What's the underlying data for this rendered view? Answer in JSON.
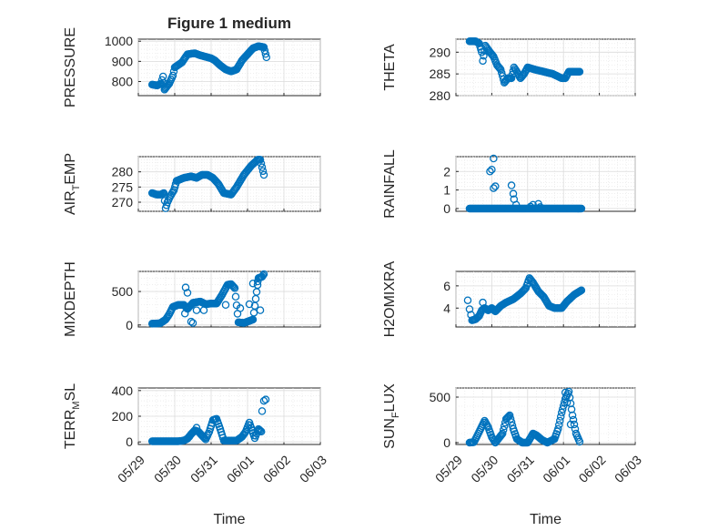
{
  "title": "Figure 1 medium",
  "chart_data": [
    {
      "type": "scatter",
      "id": "pressure",
      "ylabel": "PRESSURE",
      "ylabel_sub": "",
      "ylim": [
        730,
        1010
      ],
      "yticks": [
        800,
        900,
        1000
      ],
      "yticklabels": [
        "800",
        "900",
        "1000"
      ],
      "xlim": [
        0,
        5
      ],
      "xticks": [
        0,
        1,
        2,
        3,
        4,
        5
      ],
      "xticklabels": [],
      "xlabel": "",
      "color": "#0072bd",
      "grid": true,
      "curve": [
        [
          0.38,
          785
        ],
        [
          0.52,
          780
        ],
        [
          0.62,
          790
        ],
        [
          0.68,
          825
        ],
        [
          0.72,
          760
        ],
        [
          0.76,
          770
        ],
        [
          0.85,
          790
        ],
        [
          0.95,
          830
        ],
        [
          1.0,
          870
        ],
        [
          1.2,
          895
        ],
        [
          1.35,
          935
        ],
        [
          1.55,
          940
        ],
        [
          1.7,
          930
        ],
        [
          1.8,
          925
        ],
        [
          2.0,
          915
        ],
        [
          2.1,
          905
        ],
        [
          2.25,
          880
        ],
        [
          2.4,
          860
        ],
        [
          2.55,
          850
        ],
        [
          2.7,
          860
        ],
        [
          2.85,
          905
        ],
        [
          3.0,
          935
        ],
        [
          3.15,
          965
        ],
        [
          3.3,
          975
        ],
        [
          3.45,
          970
        ],
        [
          3.52,
          920
        ]
      ]
    },
    {
      "type": "scatter",
      "id": "theta",
      "ylabel": "THETA",
      "ylabel_sub": "",
      "ylim": [
        280,
        293
      ],
      "yticks": [
        280,
        285,
        290
      ],
      "yticklabels": [
        "280",
        "285",
        "290"
      ],
      "xlim": [
        0,
        5
      ],
      "xticks": [
        0,
        1,
        2,
        3,
        4,
        5
      ],
      "xticklabels": [],
      "xlabel": "",
      "color": "#0072bd",
      "grid": true,
      "curve": [
        [
          0.38,
          292.5
        ],
        [
          0.55,
          292.5
        ],
        [
          0.65,
          292
        ],
        [
          0.72,
          290
        ],
        [
          0.75,
          288
        ],
        [
          0.82,
          291.5
        ],
        [
          0.95,
          290
        ],
        [
          1.05,
          289
        ],
        [
          1.15,
          287
        ],
        [
          1.25,
          286
        ],
        [
          1.35,
          283
        ],
        [
          1.45,
          284
        ],
        [
          1.55,
          284
        ],
        [
          1.62,
          286.5
        ],
        [
          1.7,
          285.5
        ],
        [
          1.8,
          284
        ],
        [
          1.9,
          285
        ],
        [
          2.0,
          286.5
        ],
        [
          2.2,
          286
        ],
        [
          2.45,
          285.5
        ],
        [
          2.7,
          285
        ],
        [
          2.95,
          284
        ],
        [
          3.05,
          284
        ],
        [
          3.15,
          285.5
        ],
        [
          3.3,
          285.5
        ],
        [
          3.45,
          285.5
        ]
      ]
    },
    {
      "type": "scatter",
      "id": "air-temp",
      "ylabel": "AIR",
      "ylabel_sub": "T",
      "ylabel_after": "EMP",
      "ylim": [
        267,
        285
      ],
      "yticks": [
        270,
        275,
        280
      ],
      "yticklabels": [
        "270",
        "275",
        "280"
      ],
      "xlim": [
        0,
        5
      ],
      "xticks": [
        0,
        1,
        2,
        3,
        4,
        5
      ],
      "xticklabels": [],
      "xlabel": "",
      "color": "#0072bd",
      "grid": true,
      "curve": [
        [
          0.38,
          273
        ],
        [
          0.5,
          272.5
        ],
        [
          0.62,
          272.5
        ],
        [
          0.7,
          273
        ],
        [
          0.75,
          268
        ],
        [
          0.8,
          270
        ],
        [
          0.88,
          272
        ],
        [
          0.98,
          274
        ],
        [
          1.05,
          277
        ],
        [
          1.25,
          278
        ],
        [
          1.45,
          278.5
        ],
        [
          1.6,
          278
        ],
        [
          1.75,
          279
        ],
        [
          1.9,
          279
        ],
        [
          2.05,
          278
        ],
        [
          2.2,
          276
        ],
        [
          2.35,
          273
        ],
        [
          2.55,
          272.5
        ],
        [
          2.7,
          275
        ],
        [
          2.9,
          279
        ],
        [
          3.1,
          282
        ],
        [
          3.28,
          284
        ],
        [
          3.35,
          284
        ],
        [
          3.45,
          279
        ]
      ]
    },
    {
      "type": "scatter",
      "id": "rainfall",
      "ylabel": "RAINFALL",
      "ylabel_sub": "",
      "ylim": [
        -0.15,
        2.8
      ],
      "yticks": [
        0,
        1,
        2
      ],
      "yticklabels": [
        "0",
        "1",
        "2"
      ],
      "xlim": [
        0,
        5
      ],
      "xticks": [
        0,
        1,
        2,
        3,
        4,
        5
      ],
      "xticklabels": [],
      "xlabel": "",
      "color": "#0072bd",
      "grid": true,
      "curve": [
        [
          0.38,
          0
        ],
        [
          3.5,
          0
        ]
      ],
      "extra": [
        [
          0.95,
          2
        ],
        [
          1.0,
          2.1
        ],
        [
          1.05,
          2.7
        ],
        [
          1.05,
          1.1
        ],
        [
          1.1,
          1.2
        ],
        [
          1.55,
          1.25
        ],
        [
          1.6,
          0.8
        ],
        [
          1.62,
          0.5
        ],
        [
          1.68,
          0.2
        ],
        [
          2.08,
          0.1
        ],
        [
          2.15,
          0.2
        ],
        [
          2.3,
          0.25
        ],
        [
          2.35,
          0.08
        ]
      ]
    },
    {
      "type": "scatter",
      "id": "mixdepth",
      "ylabel": "MIXDEPTH",
      "ylabel_sub": "",
      "ylim": [
        -30,
        800
      ],
      "yticks": [
        0,
        500
      ],
      "yticklabels": [
        "0",
        "500"
      ],
      "xlim": [
        0,
        5
      ],
      "xticks": [
        0,
        1,
        2,
        3,
        4,
        5
      ],
      "xticklabels": [],
      "xlabel": "",
      "color": "#0072bd",
      "grid": true,
      "curve": [
        [
          0.38,
          20
        ],
        [
          0.6,
          25
        ],
        [
          0.75,
          80
        ],
        [
          0.85,
          160
        ],
        [
          0.95,
          270
        ],
        [
          1.1,
          300
        ],
        [
          1.25,
          300
        ],
        [
          1.35,
          240
        ],
        [
          1.5,
          330
        ],
        [
          1.7,
          350
        ],
        [
          1.85,
          310
        ],
        [
          2.0,
          320
        ],
        [
          2.15,
          320
        ],
        [
          2.3,
          450
        ],
        [
          2.45,
          600
        ],
        [
          2.55,
          610
        ],
        [
          2.65,
          550
        ],
        [
          2.75,
          40
        ],
        [
          2.9,
          30
        ],
        [
          3.0,
          50
        ],
        [
          3.15,
          80
        ],
        [
          3.3,
          700
        ],
        [
          3.4,
          720
        ],
        [
          3.45,
          760
        ]
      ],
      "extra": [
        [
          1.3,
          560
        ],
        [
          1.35,
          480
        ],
        [
          1.28,
          170
        ],
        [
          1.45,
          50
        ],
        [
          1.5,
          30
        ],
        [
          1.6,
          220
        ],
        [
          1.8,
          220
        ],
        [
          2.4,
          300
        ],
        [
          2.8,
          250
        ],
        [
          3.05,
          310
        ],
        [
          3.15,
          620
        ],
        [
          3.28,
          650
        ],
        [
          3.35,
          220
        ]
      ]
    },
    {
      "type": "scatter",
      "id": "h2omixra",
      "ylabel": "H2OMIXRA",
      "ylabel_sub": "",
      "ylim": [
        2.3,
        7.3
      ],
      "yticks": [
        4,
        6
      ],
      "yticklabels": [
        "4",
        "6"
      ],
      "xlim": [
        0,
        5
      ],
      "xticks": [
        0,
        1,
        2,
        3,
        4,
        5
      ],
      "xticklabels": [],
      "xlabel": "",
      "color": "#0072bd",
      "grid": true,
      "curve": [
        [
          0.45,
          2.9
        ],
        [
          0.55,
          3.0
        ],
        [
          0.65,
          3.3
        ],
        [
          0.72,
          3.8
        ],
        [
          0.8,
          4.0
        ],
        [
          0.9,
          3.8
        ],
        [
          1.0,
          4.0
        ],
        [
          1.1,
          3.7
        ],
        [
          1.25,
          4.2
        ],
        [
          1.4,
          4.5
        ],
        [
          1.6,
          4.8
        ],
        [
          1.8,
          5.3
        ],
        [
          1.95,
          5.8
        ],
        [
          2.05,
          6.7
        ],
        [
          2.15,
          6.3
        ],
        [
          2.3,
          5.5
        ],
        [
          2.45,
          5.0
        ],
        [
          2.6,
          4.2
        ],
        [
          2.75,
          4.0
        ],
        [
          2.95,
          4.0
        ],
        [
          3.1,
          4.6
        ],
        [
          3.3,
          5.2
        ],
        [
          3.5,
          5.6
        ]
      ],
      "extra": [
        [
          0.33,
          4.7
        ],
        [
          0.38,
          3.9
        ],
        [
          0.42,
          3.4
        ],
        [
          0.75,
          4.5
        ]
      ]
    },
    {
      "type": "scatter",
      "id": "terr-msl",
      "ylabel": "TERR",
      "ylabel_sub": "M",
      "ylabel_after": "SL",
      "ylim": [
        -20,
        420
      ],
      "yticks": [
        0,
        200,
        400
      ],
      "yticklabels": [
        "0",
        "200",
        "400"
      ],
      "xlim": [
        0,
        5
      ],
      "xticks": [
        0,
        1,
        2,
        3,
        4,
        5
      ],
      "xticklabels": [
        "05/29",
        "05/30",
        "05/31",
        "06/01",
        "06/02",
        "06/03"
      ],
      "xlabel": "Time",
      "color": "#0072bd",
      "grid": true,
      "curve": [
        [
          0.38,
          5
        ],
        [
          1.1,
          5
        ],
        [
          1.25,
          10
        ],
        [
          1.35,
          25
        ],
        [
          1.45,
          60
        ],
        [
          1.55,
          90
        ],
        [
          1.65,
          80
        ],
        [
          1.75,
          50
        ],
        [
          1.85,
          20
        ],
        [
          1.95,
          80
        ],
        [
          2.05,
          170
        ],
        [
          2.15,
          180
        ],
        [
          2.25,
          100
        ],
        [
          2.35,
          10
        ],
        [
          2.7,
          10
        ],
        [
          2.85,
          40
        ],
        [
          2.95,
          80
        ],
        [
          3.05,
          150
        ],
        [
          3.2,
          30
        ],
        [
          3.3,
          100
        ],
        [
          3.38,
          80
        ]
      ],
      "extra": [
        [
          3.4,
          240
        ],
        [
          3.45,
          320
        ],
        [
          3.5,
          330
        ],
        [
          1.4,
          40
        ],
        [
          1.6,
          110
        ]
      ]
    },
    {
      "type": "scatter",
      "id": "sun-flux",
      "ylabel": "SUN",
      "ylabel_sub": "F",
      "ylabel_after": "LUX",
      "ylim": [
        -20,
        600
      ],
      "yticks": [
        0,
        500
      ],
      "yticklabels": [
        "0",
        "500"
      ],
      "xlim": [
        0,
        5
      ],
      "xticks": [
        0,
        1,
        2,
        3,
        4,
        5
      ],
      "xticklabels": [
        "05/29",
        "05/30",
        "05/31",
        "06/01",
        "06/02",
        "06/03"
      ],
      "xlabel": "Time",
      "color": "#0072bd",
      "grid": true,
      "curve": [
        [
          0.38,
          0
        ],
        [
          0.5,
          5
        ],
        [
          0.6,
          80
        ],
        [
          0.7,
          160
        ],
        [
          0.8,
          240
        ],
        [
          0.9,
          170
        ],
        [
          1.0,
          60
        ],
        [
          1.1,
          0
        ],
        [
          1.3,
          100
        ],
        [
          1.4,
          260
        ],
        [
          1.5,
          300
        ],
        [
          1.6,
          150
        ],
        [
          1.7,
          40
        ],
        [
          1.85,
          0
        ],
        [
          2.0,
          0
        ],
        [
          2.15,
          100
        ],
        [
          2.25,
          80
        ],
        [
          2.4,
          30
        ],
        [
          2.55,
          0
        ],
        [
          2.75,
          40
        ],
        [
          2.85,
          150
        ],
        [
          2.95,
          330
        ],
        [
          3.05,
          480
        ],
        [
          3.15,
          560
        ],
        [
          3.25,
          300
        ],
        [
          3.35,
          100
        ],
        [
          3.45,
          10
        ]
      ],
      "extra": [
        [
          3.05,
          550
        ],
        [
          3.1,
          440
        ],
        [
          3.2,
          200
        ]
      ]
    }
  ]
}
